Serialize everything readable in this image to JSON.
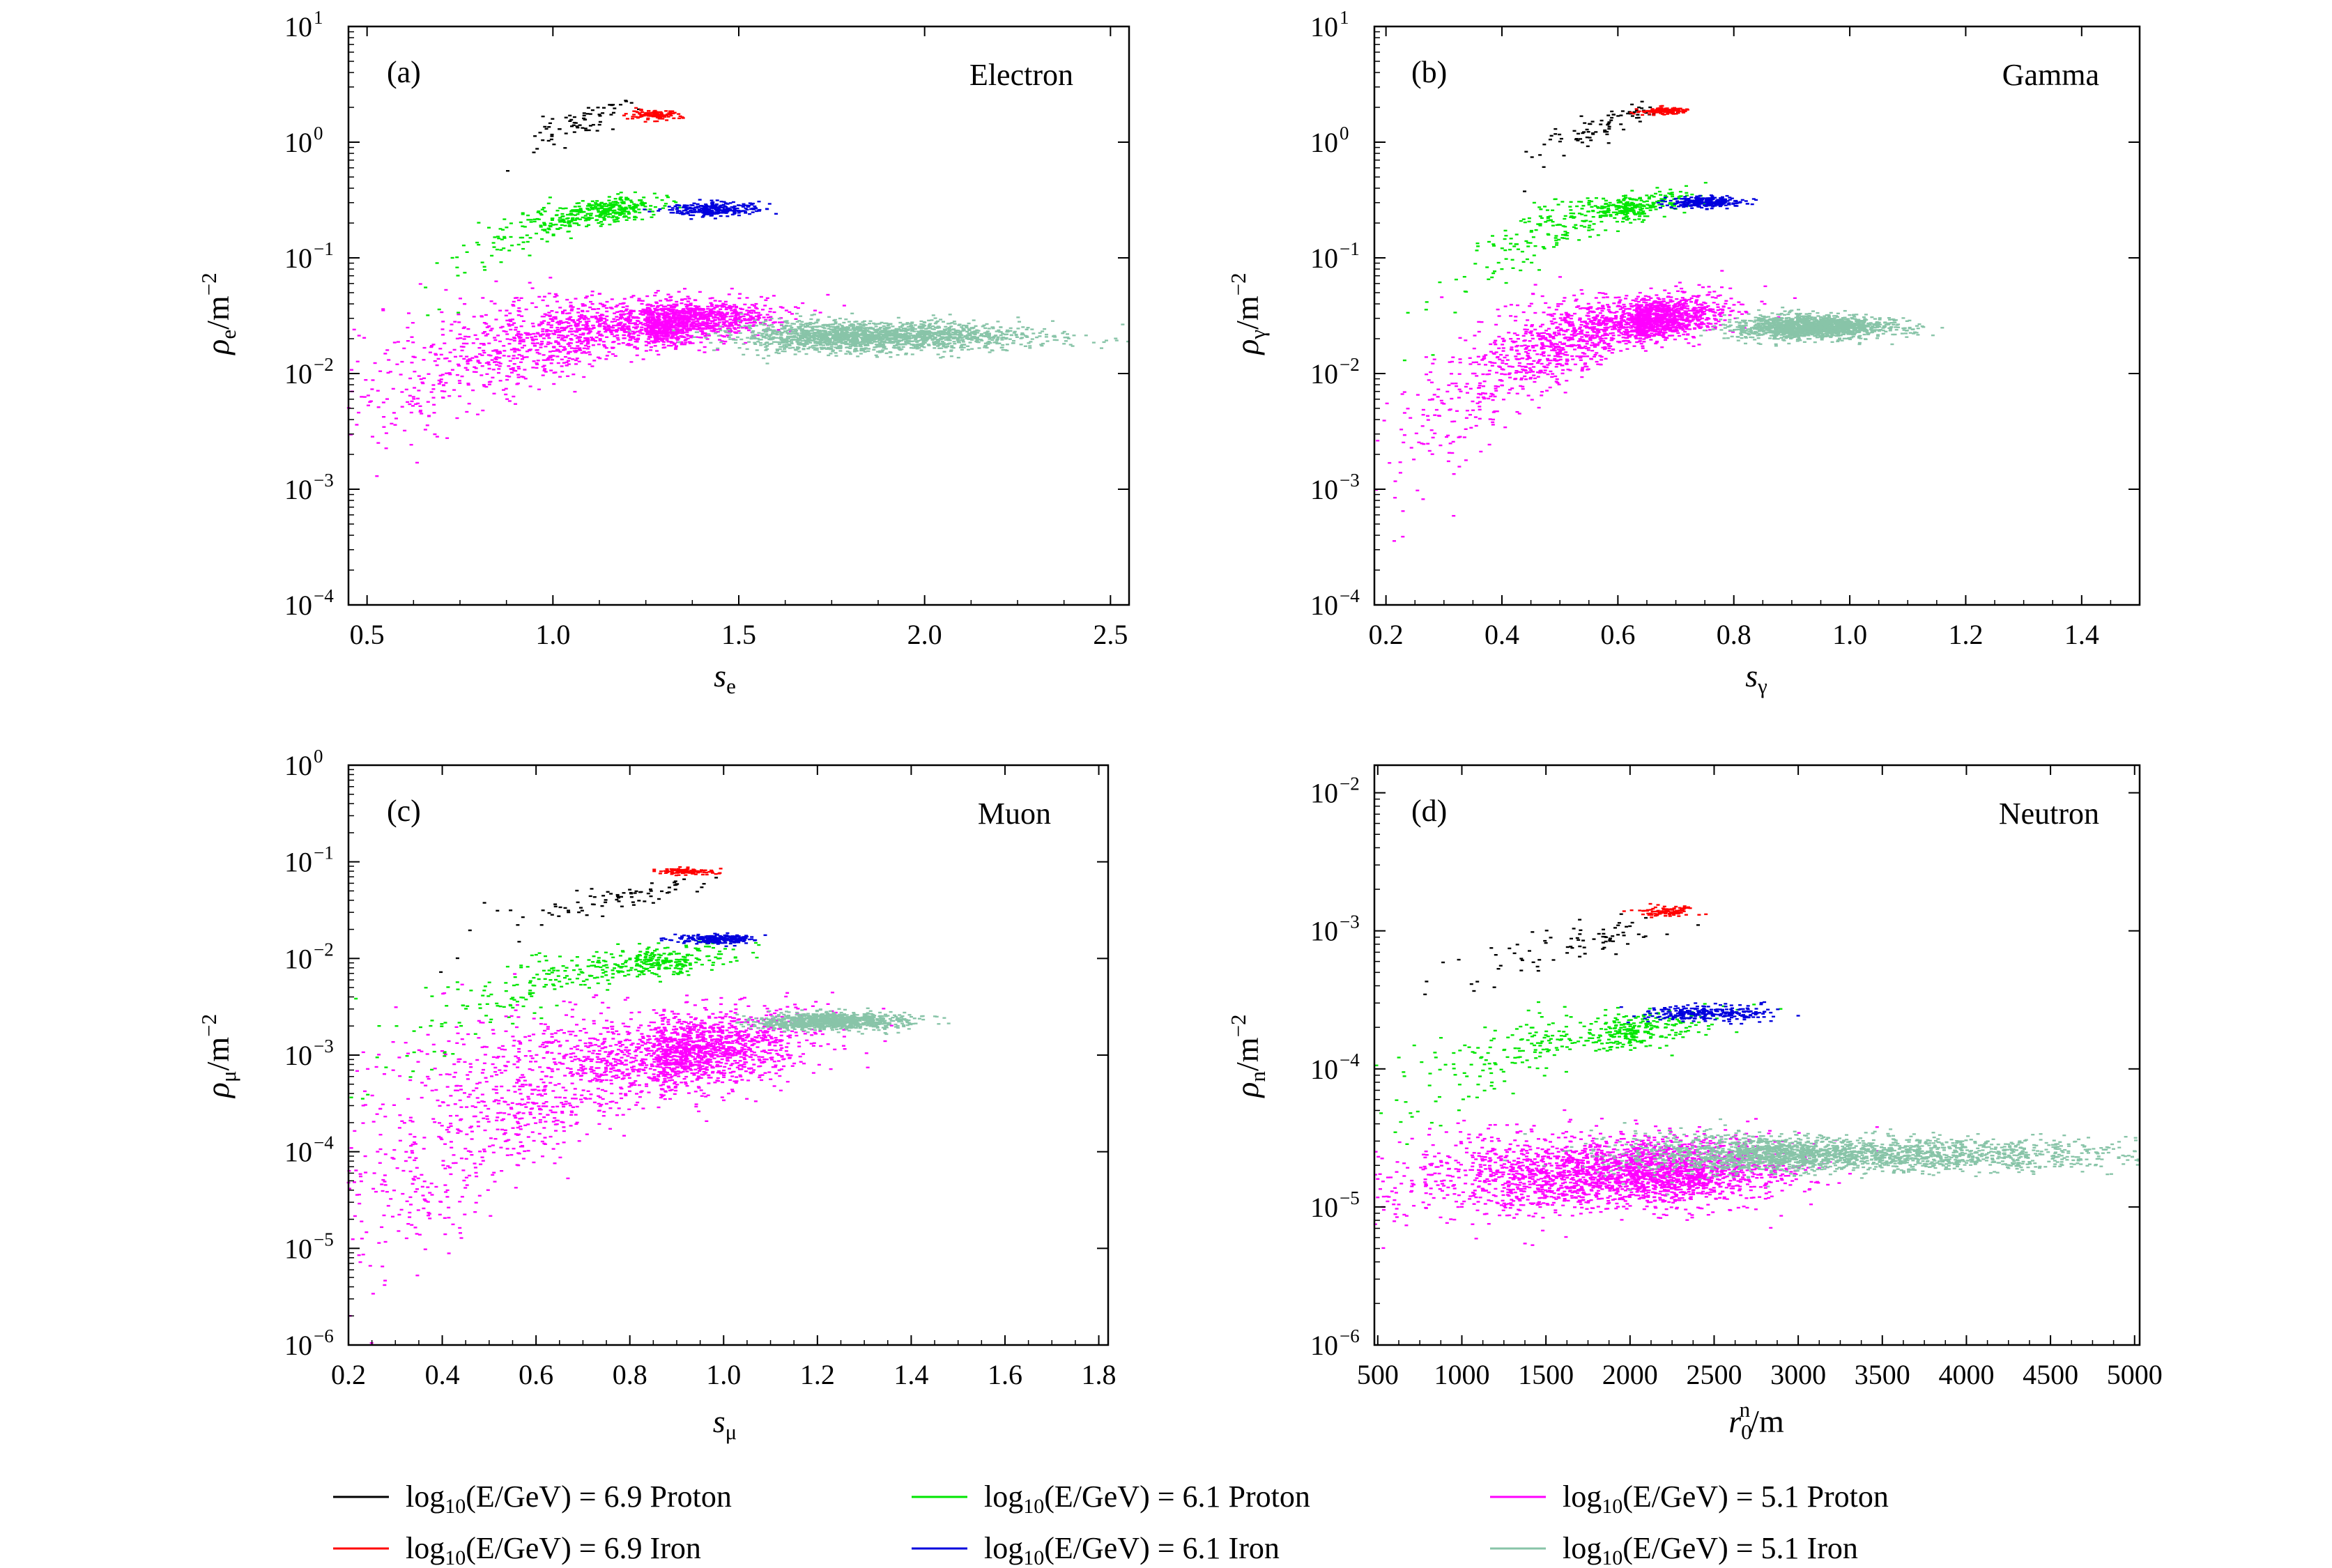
{
  "chart_data": [
    {
      "type": "scatter",
      "panel": "(a)",
      "title": "Electron",
      "xlabel": "s_e",
      "ylabel": "ρ_e/m^-2",
      "xlim": [
        0.45,
        2.55
      ],
      "ylim_log10": [
        -4,
        1
      ],
      "yscale": "log",
      "x_ticks": [
        0.5,
        1.0,
        1.5,
        2.0,
        2.5
      ],
      "x_tick_labels": [
        "0.5",
        "1.0",
        "1.5",
        "2.0",
        "2.5"
      ],
      "y_ticks_log10": [
        -4,
        -3,
        -2,
        -1,
        0,
        1
      ],
      "y_tick_labels": [
        "10",
        "10",
        "10",
        "10",
        "10",
        "10"
      ],
      "y_tick_exponents": [
        "−4",
        "−3",
        "−2",
        "−1",
        "0",
        "1"
      ],
      "series": [
        {
          "name": "log10(E/GeV) = 6.9 Proton",
          "color": "#000000",
          "n": 70,
          "x_mean": 1.07,
          "x_sd": 0.06,
          "y_log_mean": 0.18,
          "y_log_sd": 0.09,
          "x_skew": -0.5,
          "corr": 0.7
        },
        {
          "name": "log10(E/GeV) = 6.9 Iron",
          "color": "#ff0000",
          "n": 120,
          "x_mean": 1.27,
          "x_sd": 0.035,
          "y_log_mean": 0.235,
          "y_log_sd": 0.02,
          "x_skew": 0,
          "corr": 0
        },
        {
          "name": "log10(E/GeV) = 6.1 Proton",
          "color": "#00e600",
          "n": 420,
          "x_mean": 1.12,
          "x_sd": 0.08,
          "y_log_mean": -0.6,
          "y_log_sd": 0.06,
          "x_skew": -1.2,
          "corr": 0.5
        },
        {
          "name": "log10(E/GeV) = 6.1 Iron",
          "color": "#0000dd",
          "n": 260,
          "x_mean": 1.43,
          "x_sd": 0.06,
          "y_log_mean": -0.58,
          "y_log_sd": 0.03,
          "x_skew": 0,
          "corr": 0
        },
        {
          "name": "log10(E/GeV) = 5.1 Proton",
          "color": "#ff00ff",
          "n": 2200,
          "x_mean": 1.25,
          "x_sd": 0.15,
          "y_log_mean": -1.58,
          "y_log_sd": 0.1,
          "x_skew": -1.5,
          "corr": 0.35
        },
        {
          "name": "log10(E/GeV) = 5.1 Iron",
          "color": "#88c4a8",
          "n": 1800,
          "x_mean": 1.85,
          "x_sd": 0.16,
          "y_log_mean": -1.68,
          "y_log_sd": 0.06,
          "x_skew": 0.4,
          "corr": 0
        }
      ]
    },
    {
      "type": "scatter",
      "panel": "(b)",
      "title": "Gamma",
      "xlabel": "s_γ",
      "ylabel": "ρ_γ/m^-2",
      "xlim": [
        0.18,
        1.5
      ],
      "ylim_log10": [
        -4,
        1
      ],
      "yscale": "log",
      "x_ticks": [
        0.2,
        0.4,
        0.6,
        0.8,
        1.0,
        1.2,
        1.4
      ],
      "x_tick_labels": [
        "0.2",
        "0.4",
        "0.6",
        "0.8",
        "1.0",
        "1.2",
        "1.4"
      ],
      "y_ticks_log10": [
        -4,
        -3,
        -2,
        -1,
        0,
        1
      ],
      "y_tick_labels": [
        "10",
        "10",
        "10",
        "10",
        "10",
        "10"
      ],
      "y_tick_exponents": [
        "−4",
        "−3",
        "−2",
        "−1",
        "0",
        "1"
      ],
      "series": [
        {
          "name": "log10(E/GeV) = 6.9 Proton",
          "color": "#000000",
          "n": 80,
          "x_mean": 0.58,
          "x_sd": 0.045,
          "y_log_mean": 0.15,
          "y_log_sd": 0.1,
          "x_skew": -0.6,
          "corr": 0.75
        },
        {
          "name": "log10(E/GeV) = 6.9 Iron",
          "color": "#ff0000",
          "n": 120,
          "x_mean": 0.68,
          "x_sd": 0.02,
          "y_log_mean": 0.27,
          "y_log_sd": 0.015,
          "x_skew": 0,
          "corr": 0
        },
        {
          "name": "log10(E/GeV) = 6.1 Proton",
          "color": "#00e600",
          "n": 420,
          "x_mean": 0.6,
          "x_sd": 0.055,
          "y_log_mean": -0.58,
          "y_log_sd": 0.07,
          "x_skew": -1.4,
          "corr": 0.55
        },
        {
          "name": "log10(E/GeV) = 6.1 Iron",
          "color": "#0000dd",
          "n": 240,
          "x_mean": 0.75,
          "x_sd": 0.03,
          "y_log_mean": -0.52,
          "y_log_sd": 0.025,
          "x_skew": 0,
          "corr": 0
        },
        {
          "name": "log10(E/GeV) = 5.1 Proton",
          "color": "#ff00ff",
          "n": 2000,
          "x_mean": 0.63,
          "x_sd": 0.07,
          "y_log_mean": -1.55,
          "y_log_sd": 0.1,
          "x_skew": -1.6,
          "corr": 0.45
        },
        {
          "name": "log10(E/GeV) = 5.1 Iron",
          "color": "#88c4a8",
          "n": 1500,
          "x_mean": 0.93,
          "x_sd": 0.06,
          "y_log_mean": -1.6,
          "y_log_sd": 0.05,
          "x_skew": 0.2,
          "corr": 0
        }
      ]
    },
    {
      "type": "scatter",
      "panel": "(c)",
      "title": "Muon",
      "xlabel": "s_μ",
      "ylabel": "ρ_μ/m^-2",
      "xlim": [
        0.2,
        1.82
      ],
      "ylim_log10": [
        -6,
        0
      ],
      "yscale": "log",
      "x_ticks": [
        0.2,
        0.4,
        0.6,
        0.8,
        1.0,
        1.2,
        1.4,
        1.6,
        1.8
      ],
      "x_tick_labels": [
        "0.2",
        "0.4",
        "0.6",
        "0.8",
        "1.0",
        "1.2",
        "1.4",
        "1.6",
        "1.8"
      ],
      "y_ticks_log10": [
        -6,
        -5,
        -4,
        -3,
        -2,
        -1,
        0
      ],
      "y_tick_labels": [
        "10",
        "10",
        "10",
        "10",
        "10",
        "10",
        "10"
      ],
      "y_tick_exponents": [
        "−6",
        "−5",
        "−4",
        "−3",
        "−2",
        "−1",
        "0"
      ],
      "series": [
        {
          "name": "log10(E/GeV) = 6.9 Proton",
          "color": "#000000",
          "n": 80,
          "x_mean": 0.8,
          "x_sd": 0.09,
          "y_log_mean": -1.35,
          "y_log_sd": 0.09,
          "x_skew": -0.8,
          "corr": 0.7
        },
        {
          "name": "log10(E/GeV) = 6.9 Iron",
          "color": "#ff0000",
          "n": 110,
          "x_mean": 0.92,
          "x_sd": 0.03,
          "y_log_mean": -1.1,
          "y_log_sd": 0.015,
          "x_skew": 0,
          "corr": 0
        },
        {
          "name": "log10(E/GeV) = 6.1 Proton",
          "color": "#00e600",
          "n": 420,
          "x_mean": 0.82,
          "x_sd": 0.1,
          "y_log_mean": -2.05,
          "y_log_sd": 0.09,
          "x_skew": -1.5,
          "corr": 0.5
        },
        {
          "name": "log10(E/GeV) = 6.1 Iron",
          "color": "#0000dd",
          "n": 220,
          "x_mean": 0.99,
          "x_sd": 0.04,
          "y_log_mean": -1.8,
          "y_log_sd": 0.025,
          "x_skew": 0,
          "corr": 0
        },
        {
          "name": "log10(E/GeV) = 5.1 Proton",
          "color": "#ff00ff",
          "n": 2400,
          "x_mean": 0.86,
          "x_sd": 0.15,
          "y_log_mean": -3.0,
          "y_log_sd": 0.22,
          "x_skew": -1.8,
          "corr": 0.4
        },
        {
          "name": "log10(E/GeV) = 5.1 Iron",
          "color": "#88c4a8",
          "n": 900,
          "x_mean": 1.22,
          "x_sd": 0.07,
          "y_log_mean": -2.65,
          "y_log_sd": 0.04,
          "x_skew": 0.3,
          "corr": 0
        }
      ]
    },
    {
      "type": "scatter",
      "panel": "(d)",
      "title": "Neutron",
      "xlabel": "r0^n/m",
      "ylabel": "ρ_n/m^-2",
      "xlim": [
        480,
        5030
      ],
      "ylim_log10": [
        -6,
        -1.8
      ],
      "yscale": "log",
      "x_ticks": [
        500,
        1000,
        1500,
        2000,
        2500,
        3000,
        3500,
        4000,
        4500,
        5000
      ],
      "x_tick_labels": [
        "500",
        "1000",
        "1500",
        "2000",
        "2500",
        "3000",
        "3500",
        "4000",
        "4500",
        "5000"
      ],
      "y_ticks_log10": [
        -6,
        -5,
        -4,
        -3,
        -2
      ],
      "y_tick_labels": [
        "10",
        "10",
        "10",
        "10",
        "10"
      ],
      "y_tick_exponents": [
        "−6",
        "−5",
        "−4",
        "−3",
        "−2"
      ],
      "series": [
        {
          "name": "log10(E/GeV) = 6.9 Proton",
          "color": "#000000",
          "n": 80,
          "x_mean": 1750,
          "x_sd": 260,
          "y_log_mean": -3.05,
          "y_log_sd": 0.08,
          "x_skew": -0.7,
          "corr": 0.65
        },
        {
          "name": "log10(E/GeV) = 6.9 Iron",
          "color": "#ff0000",
          "n": 100,
          "x_mean": 2220,
          "x_sd": 90,
          "y_log_mean": -2.86,
          "y_log_sd": 0.02,
          "x_skew": 0,
          "corr": 0
        },
        {
          "name": "log10(E/GeV) = 6.1 Proton",
          "color": "#00e600",
          "n": 420,
          "x_mean": 1850,
          "x_sd": 300,
          "y_log_mean": -3.75,
          "y_log_sd": 0.08,
          "x_skew": -1.3,
          "corr": 0.5
        },
        {
          "name": "log10(E/GeV) = 6.1 Iron",
          "color": "#0000dd",
          "n": 260,
          "x_mean": 2450,
          "x_sd": 180,
          "y_log_mean": -3.6,
          "y_log_sd": 0.03,
          "x_skew": 0,
          "corr": 0
        },
        {
          "name": "log10(E/GeV) = 5.1 Proton",
          "color": "#ff00ff",
          "n": 2600,
          "x_mean": 2000,
          "x_sd": 450,
          "y_log_mean": -4.75,
          "y_log_sd": 0.12,
          "x_skew": -0.5,
          "corr": 0.1
        },
        {
          "name": "log10(E/GeV) = 5.1 Iron",
          "color": "#88c4a8",
          "n": 2200,
          "x_mean": 3100,
          "x_sd": 550,
          "y_log_mean": -4.62,
          "y_log_sd": 0.06,
          "x_skew": 0.6,
          "corr": 0
        }
      ]
    }
  ],
  "legend": {
    "entries": [
      {
        "prefix": "log",
        "sub": "10",
        "expr": "(E/GeV) = 6.9 Proton",
        "color": "#000000"
      },
      {
        "prefix": "log",
        "sub": "10",
        "expr": "(E/GeV) = 6.1 Proton",
        "color": "#00e600"
      },
      {
        "prefix": "log",
        "sub": "10",
        "expr": "(E/GeV) = 5.1 Proton",
        "color": "#ff00ff"
      },
      {
        "prefix": "log",
        "sub": "10",
        "expr": "(E/GeV) = 6.9 Iron",
        "color": "#ff0000"
      },
      {
        "prefix": "log",
        "sub": "10",
        "expr": "(E/GeV) = 6.1 Iron",
        "color": "#0000dd"
      },
      {
        "prefix": "log",
        "sub": "10",
        "expr": "(E/GeV) = 5.1 Iron",
        "color": "#88c4a8"
      }
    ]
  },
  "axis_text": {
    "a": {
      "x_main": "s",
      "x_sub": "e",
      "y_main": "ρ",
      "y_sub": "e",
      "y_unit": "/m",
      "y_sup": "−2"
    },
    "b": {
      "x_main": "s",
      "x_sub": "γ",
      "y_main": "ρ",
      "y_sub": "γ",
      "y_unit": "/m",
      "y_sup": "−2"
    },
    "c": {
      "x_main": "s",
      "x_sub": "μ",
      "y_main": "ρ",
      "y_sub": "μ",
      "y_unit": "/m",
      "y_sup": "−2"
    },
    "d": {
      "x_main": "r",
      "x_sub": "0",
      "x_sup": "n",
      "x_unit": "/m",
      "y_main": "ρ",
      "y_sub": "n",
      "y_unit": "/m",
      "y_sup": "−2"
    }
  }
}
